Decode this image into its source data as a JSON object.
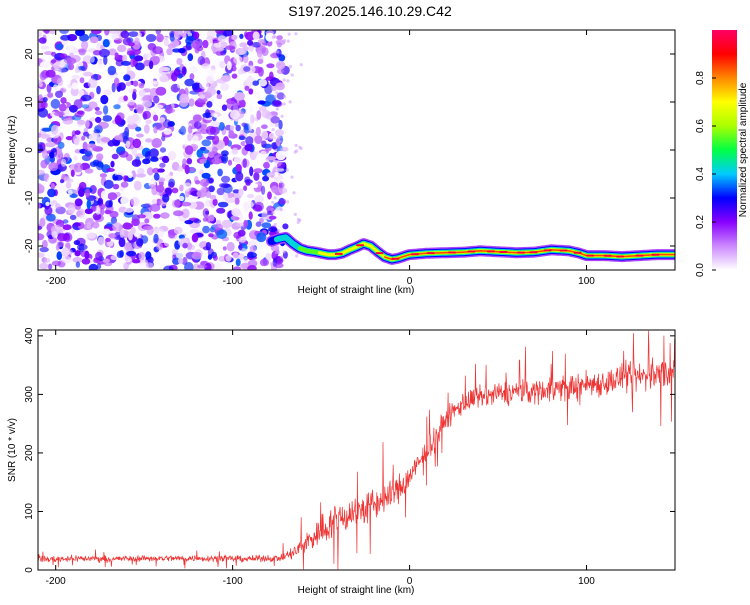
{
  "title": "S197.2025.146.10.29.C42",
  "chart_data": [
    {
      "type": "heatmap",
      "xlabel": "Height of straight line (km)",
      "ylabel": "Frequency (Hz)",
      "xlim": [
        -210,
        150
      ],
      "ylim": [
        -25,
        25
      ],
      "xticks": [
        -200,
        -100,
        0,
        100
      ],
      "yticks": [
        -20,
        -10,
        0,
        10,
        20
      ],
      "colorbar": {
        "label": "Normalized spectral amplitude",
        "range": [
          0,
          1
        ],
        "ticks": [
          0.0,
          0.2,
          0.4,
          0.6,
          0.8
        ],
        "colors": [
          "#ffffff",
          "#cc88ff",
          "#8800ff",
          "#0000ff",
          "#00ccff",
          "#00ff44",
          "#aaff00",
          "#ffff00",
          "#ff8800",
          "#ff0000",
          "#ff0066"
        ]
      },
      "noise_region": {
        "x_from": -210,
        "x_to": -78,
        "freq_from": -25,
        "freq_to": 25,
        "amplitude_range": [
          0.0,
          0.35
        ]
      },
      "carrier_line": {
        "x": [
          -78,
          -74,
          -70,
          -66,
          -62,
          -58,
          -54,
          -50,
          -46,
          -42,
          -38,
          -34,
          -30,
          -26,
          -22,
          -18,
          -14,
          -10,
          -6,
          -2,
          0,
          10,
          20,
          30,
          40,
          50,
          60,
          70,
          80,
          90,
          96,
          100,
          110,
          120,
          130,
          140,
          150
        ],
        "frequency": [
          -19.0,
          -18.5,
          -18.2,
          -19.5,
          -20.5,
          -21.0,
          -21.2,
          -21.5,
          -21.8,
          -21.8,
          -21.5,
          -20.8,
          -20.2,
          -19.5,
          -20.0,
          -21.2,
          -22.3,
          -22.8,
          -22.5,
          -22.0,
          -21.8,
          -21.5,
          -21.4,
          -21.3,
          -21.0,
          -21.2,
          -21.4,
          -21.3,
          -20.8,
          -21.0,
          -21.5,
          -22.0,
          -22.0,
          -22.2,
          -22.0,
          -21.8,
          -21.8
        ],
        "peak_amplitude": [
          0.35,
          0.45,
          0.45,
          0.5,
          0.55,
          0.6,
          0.65,
          0.7,
          0.8,
          0.85,
          0.8,
          0.7,
          0.75,
          0.8,
          0.8,
          0.75,
          0.85,
          0.9,
          0.85,
          0.85,
          0.9,
          0.9,
          0.9,
          0.9,
          0.9,
          0.9,
          0.9,
          0.9,
          0.9,
          0.9,
          0.9,
          0.9,
          0.9,
          0.9,
          0.9,
          0.9,
          0.9
        ]
      }
    },
    {
      "type": "line",
      "xlabel": "Height of straight line (km)",
      "ylabel": "SNR (10 * v/v)",
      "xlim": [
        -210,
        150
      ],
      "ylim": [
        0,
        410
      ],
      "xticks": [
        -200,
        -100,
        0,
        100
      ],
      "yticks": [
        0,
        100,
        200,
        300,
        400
      ],
      "color": "#ee3333",
      "series": [
        {
          "x": [
            -210,
            -190,
            -170,
            -150,
            -130,
            -110,
            -90,
            -72,
            -65,
            -55,
            -45,
            -35,
            -25,
            -15,
            -5,
            0,
            5,
            10,
            15,
            20,
            25,
            30,
            35,
            40,
            50,
            60,
            70,
            80,
            90,
            100,
            110,
            120,
            130,
            140,
            150
          ],
          "mean": [
            18,
            20,
            19,
            20,
            20,
            20,
            19,
            21,
            30,
            55,
            80,
            95,
            105,
            120,
            140,
            160,
            180,
            205,
            230,
            255,
            270,
            285,
            290,
            295,
            300,
            305,
            305,
            310,
            312,
            318,
            320,
            328,
            330,
            335,
            340
          ],
          "noise": [
            8,
            8,
            8,
            8,
            8,
            8,
            8,
            9,
            20,
            35,
            45,
            45,
            45,
            40,
            40,
            35,
            30,
            30,
            30,
            30,
            30,
            30,
            30,
            30,
            30,
            32,
            32,
            35,
            35,
            35,
            35,
            38,
            40,
            40,
            40
          ]
        }
      ]
    }
  ]
}
